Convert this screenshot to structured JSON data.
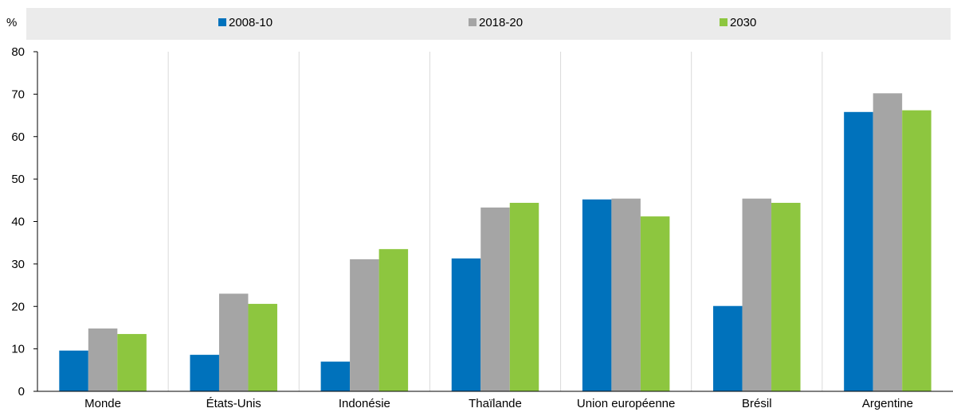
{
  "chart_data": {
    "type": "bar",
    "ylabel": "%",
    "ylim": [
      0,
      80
    ],
    "yticks": [
      0,
      10,
      20,
      30,
      40,
      50,
      60,
      70,
      80
    ],
    "categories": [
      "Monde",
      "États-Unis",
      "Indonésie",
      "Thaïlande",
      "Union européenne",
      "Brésil",
      "Argentine"
    ],
    "series": [
      {
        "name": "2008-10",
        "color": "#0072bc",
        "values": [
          9.6,
          8.6,
          7.0,
          31.3,
          45.2,
          20.1,
          65.8
        ]
      },
      {
        "name": "2018-20",
        "color": "#a5a5a5",
        "values": [
          14.8,
          23.0,
          31.1,
          43.3,
          45.4,
          45.4,
          70.2
        ]
      },
      {
        "name": "2030",
        "color": "#8dc63f",
        "values": [
          13.5,
          20.6,
          33.5,
          44.4,
          41.2,
          44.4,
          66.2
        ]
      }
    ],
    "grid": "vertical-separators",
    "legend": "top"
  }
}
